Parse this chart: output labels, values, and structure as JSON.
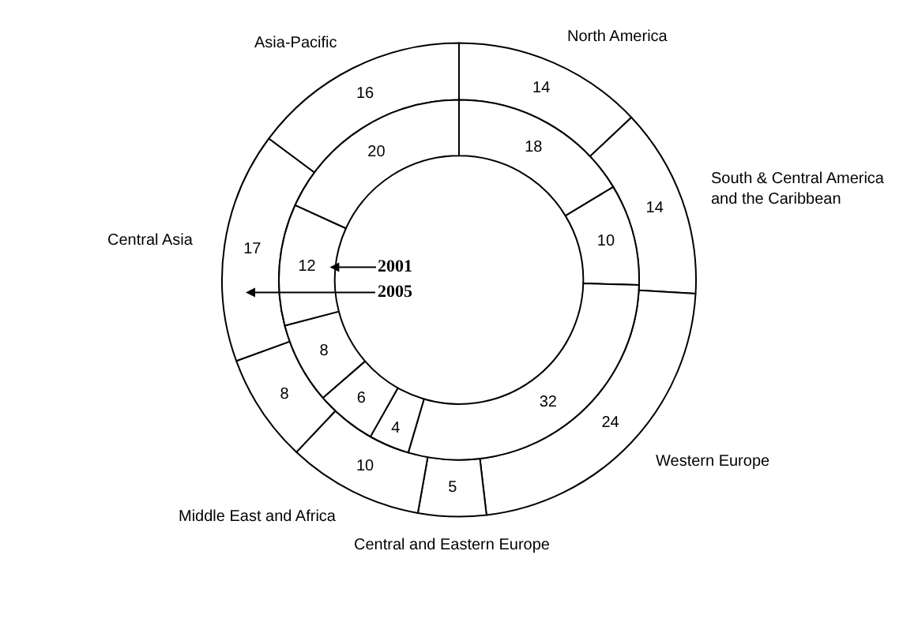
{
  "chart_data": {
    "type": "donut",
    "categories": [
      "North America",
      "South & Central America\nand the Caribbean",
      "Western Europe",
      "Central and Eastern Europe",
      "Middle East and Africa",
      null,
      "Central Asia",
      "Asia-Pacific"
    ],
    "series": [
      {
        "name": "2005",
        "color": "#ffffff",
        "values": [
          14,
          14,
          24,
          5,
          10,
          8,
          17,
          16
        ]
      },
      {
        "name": "2001",
        "color": "#ffffff",
        "values": [
          18,
          10,
          32,
          4,
          6,
          8,
          12,
          20
        ]
      }
    ],
    "data_labels": true,
    "legend": "center"
  }
}
